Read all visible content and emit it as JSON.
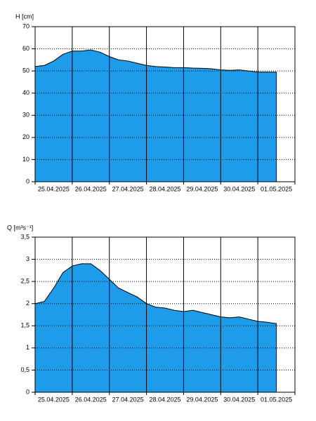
{
  "chart_data": [
    {
      "type": "area",
      "y_label": "H [cm]",
      "categories": [
        null,
        null,
        "25.04.2025",
        null,
        null,
        null,
        "26.04.2025",
        null,
        null,
        null,
        "27.04.2025",
        null,
        null,
        null,
        "28.04.2025",
        null,
        null,
        null,
        "29.04.2025",
        null,
        null,
        null,
        "30.04.2025",
        null,
        null,
        null,
        "01.05.2025",
        null,
        null
      ],
      "series": [
        {
          "name": "H",
          "color": "#1e9be9",
          "values": [
            52,
            52.5,
            54.5,
            57.5,
            59,
            59,
            59.5,
            58.5,
            56.5,
            55,
            54.5,
            53.5,
            52.5,
            52,
            51.8,
            51.5,
            51.5,
            51.3,
            51.2,
            51,
            50.5,
            50.3,
            50.5,
            50,
            49.5,
            49.5,
            49.5,
            null,
            null
          ]
        }
      ],
      "ylim": [
        0,
        70
      ],
      "yticks": [
        0,
        10,
        20,
        30,
        40,
        50,
        60,
        70
      ],
      "grid": true
    },
    {
      "type": "area",
      "y_label": "Q [m³s⁻¹]",
      "categories": [
        null,
        null,
        "25.04.2025",
        null,
        null,
        null,
        "26.04.2025",
        null,
        null,
        null,
        "27.04.2025",
        null,
        null,
        null,
        "28.04.2025",
        null,
        null,
        null,
        "29.04.2025",
        null,
        null,
        null,
        "30.04.2025",
        null,
        null,
        null,
        "01.05.2025",
        null,
        null
      ],
      "series": [
        {
          "name": "Q",
          "color": "#1e9be9",
          "values": [
            2.0,
            2.05,
            2.35,
            2.7,
            2.85,
            2.9,
            2.9,
            2.75,
            2.55,
            2.35,
            2.25,
            2.15,
            2.0,
            1.92,
            1.9,
            1.85,
            1.82,
            1.85,
            1.8,
            1.75,
            1.7,
            1.68,
            1.7,
            1.65,
            1.6,
            1.58,
            1.55,
            null,
            null
          ]
        }
      ],
      "ylim": [
        0,
        3.5
      ],
      "yticks": [
        0,
        {
          "value": 0.5,
          "label": "0,5"
        },
        1,
        {
          "value": 1.5,
          "label": "1,5"
        },
        2,
        {
          "value": 2.5,
          "label": "2,5"
        },
        3,
        {
          "value": 3.5,
          "label": "3,5"
        }
      ],
      "grid": true
    }
  ]
}
